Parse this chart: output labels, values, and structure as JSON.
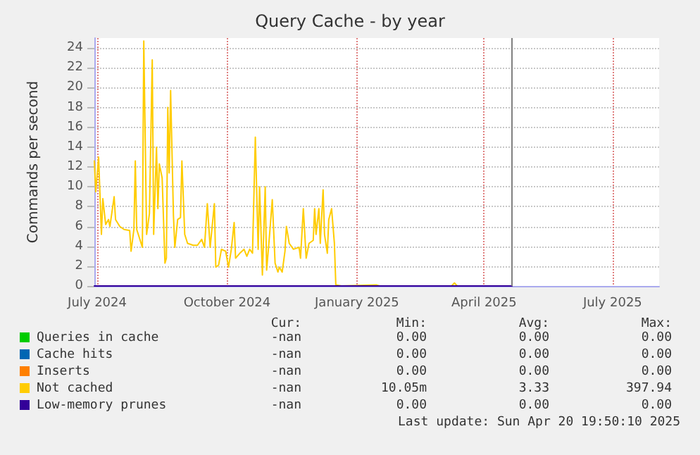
{
  "chart_data": {
    "type": "line",
    "title": "Query Cache - by year",
    "ylabel": "Commands per second",
    "xlim": [
      "2024-06-29",
      "2025-08-03"
    ],
    "xticks": [
      {
        "value": "2024-07-01",
        "label": "July 2024"
      },
      {
        "value": "2024-10-01",
        "label": "October 2024"
      },
      {
        "value": "2025-01-01",
        "label": "January 2025"
      },
      {
        "value": "2025-04-01",
        "label": "April 2025"
      },
      {
        "value": "2025-07-01",
        "label": "July 2025"
      }
    ],
    "ylim": [
      0,
      25
    ],
    "yticks": [
      0,
      2,
      4,
      6,
      8,
      10,
      12,
      14,
      16,
      18,
      20,
      22,
      24
    ],
    "grid": true,
    "legend": "bottom",
    "marker": "none",
    "line_style": "solid",
    "ref_lines": [
      {
        "axis": "x",
        "value": "2025-04-20T19:50",
        "color": "#808080"
      }
    ],
    "annotations": [
      "Cur:",
      "Min:",
      "Avg:",
      "Max:",
      "-nan",
      "0.00",
      "0.00",
      "0.00",
      "-nan",
      "0.00",
      "0.00",
      "0.00",
      "-nan",
      "0.00",
      "0.00",
      "0.00",
      "-nan",
      "10.05m",
      "3.33",
      "397.94",
      "-nan",
      "0.00",
      "0.00",
      "0.00",
      "Last update: Sun Apr 20 19:50:10 2025"
    ],
    "series": [
      {
        "name": "Queries in cache",
        "color": "#00cc00"
      },
      {
        "name": "Cache hits",
        "color": "#0066b3"
      },
      {
        "name": "Inserts",
        "color": "#ff8000"
      },
      {
        "name": "Not cached",
        "color": "#ffcc00",
        "x": [
          "2024-06-29",
          "2024-06-30",
          "2024-07-02",
          "2024-07-04",
          "2024-07-05",
          "2024-07-07",
          "2024-07-09",
          "2024-07-10",
          "2024-07-13",
          "2024-07-14",
          "2024-07-17",
          "2024-07-20",
          "2024-07-24",
          "2024-07-25",
          "2024-07-27",
          "2024-07-28",
          "2024-07-29",
          "2024-08-02",
          "2024-08-03",
          "2024-08-05",
          "2024-08-07",
          "2024-08-09",
          "2024-08-10",
          "2024-08-12",
          "2024-08-13",
          "2024-08-14",
          "2024-08-16",
          "2024-08-18",
          "2024-08-19",
          "2024-08-20",
          "2024-08-21",
          "2024-08-22",
          "2024-08-24",
          "2024-08-25",
          "2024-08-27",
          "2024-08-29",
          "2024-08-30",
          "2024-09-01",
          "2024-09-03",
          "2024-09-07",
          "2024-09-10",
          "2024-09-13",
          "2024-09-15",
          "2024-09-17",
          "2024-09-19",
          "2024-09-22",
          "2024-09-23",
          "2024-09-25",
          "2024-09-27",
          "2024-09-30",
          "2024-10-02",
          "2024-10-04",
          "2024-10-06",
          "2024-10-07",
          "2024-10-10",
          "2024-10-13",
          "2024-10-15",
          "2024-10-17",
          "2024-10-19",
          "2024-10-21",
          "2024-10-23",
          "2024-10-24",
          "2024-10-26",
          "2024-10-28",
          "2024-10-29",
          "2024-10-31",
          "2024-11-02",
          "2024-11-04",
          "2024-11-06",
          "2024-11-07",
          "2024-11-09",
          "2024-11-11",
          "2024-11-12",
          "2024-11-14",
          "2024-11-17",
          "2024-11-21",
          "2024-11-22",
          "2024-11-24",
          "2024-11-26",
          "2024-11-28",
          "2024-12-01",
          "2024-12-02",
          "2024-12-03",
          "2024-12-05",
          "2024-12-06",
          "2024-12-08",
          "2024-12-09",
          "2024-12-11",
          "2024-12-12",
          "2024-12-14",
          "2024-12-16",
          "2024-12-17",
          "2024-12-21",
          "2025-01-15",
          "2025-01-17",
          "2025-03-09",
          "2025-03-11",
          "2025-03-13",
          "2025-04-20T19:50"
        ],
        "values": [
          12.6,
          9.5,
          13.0,
          5.2,
          8.8,
          6.2,
          6.7,
          6.0,
          9.0,
          6.7,
          6.0,
          5.7,
          5.6,
          3.5,
          5.7,
          12.6,
          5.7,
          3.9,
          24.7,
          5.2,
          7.3,
          22.8,
          5.2,
          14.0,
          7.8,
          12.3,
          10.9,
          2.3,
          2.8,
          18.0,
          11.4,
          19.7,
          7.1,
          3.9,
          6.7,
          6.9,
          12.6,
          5.2,
          4.3,
          4.1,
          4.1,
          4.7,
          3.9,
          8.3,
          3.9,
          8.3,
          1.9,
          2.1,
          3.7,
          3.5,
          1.9,
          3.7,
          6.4,
          2.8,
          3.3,
          3.7,
          3.0,
          3.7,
          3.3,
          15.0,
          3.7,
          10.0,
          1.1,
          10.0,
          1.6,
          5.0,
          8.7,
          2.3,
          1.4,
          1.9,
          1.4,
          3.5,
          6.0,
          4.3,
          3.7,
          3.9,
          2.8,
          7.8,
          2.8,
          4.3,
          4.6,
          7.8,
          5.2,
          7.8,
          4.3,
          9.7,
          5.2,
          3.3,
          6.7,
          7.8,
          4.3,
          0.1,
          0,
          0.1,
          0,
          0,
          0.3,
          0,
          0
        ]
      },
      {
        "name": "Low-memory prunes",
        "color": "#330099",
        "x": [
          "2024-06-29",
          "2025-04-20T19:50"
        ],
        "values": [
          0,
          0
        ]
      }
    ]
  }
}
